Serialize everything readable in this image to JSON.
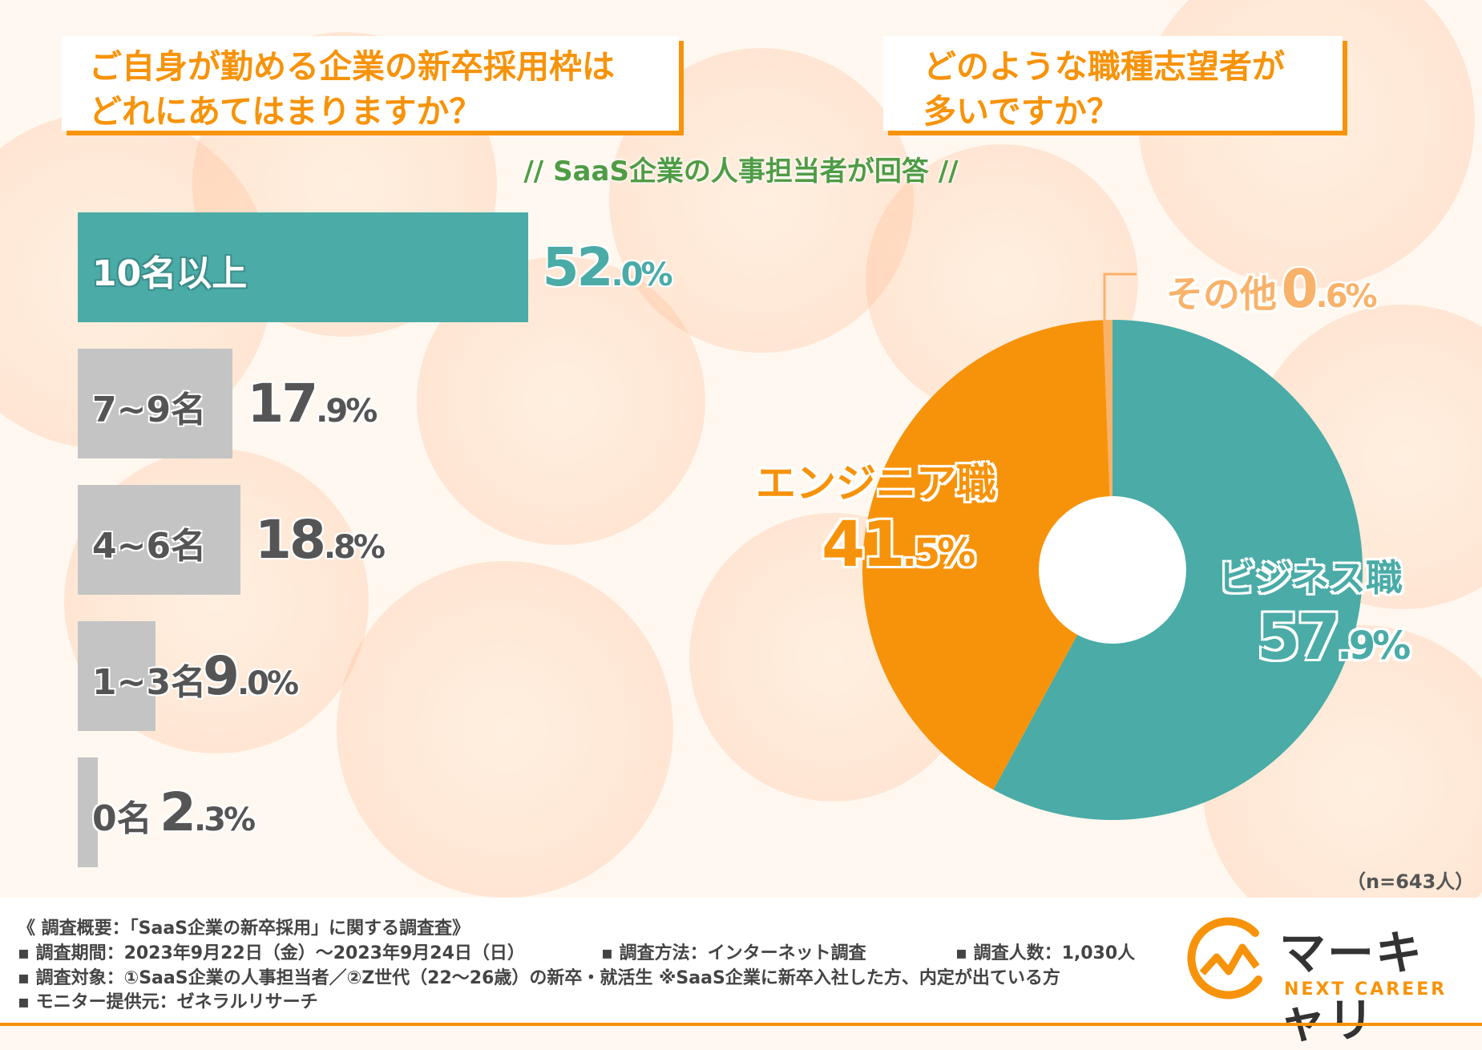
{
  "questions": {
    "left": [
      "ご自身が勤める企業の新卒採用枠は",
      "どれにあてはまりますか？"
    ],
    "right": [
      "どのような職種志望者が",
      "多いですか？"
    ]
  },
  "subtitle": "// SaaS企業の人事担当者が回答 //",
  "colors": {
    "teal": "#4aaba7",
    "orange": "#f7930a",
    "light_orange": "#f9b26a",
    "gray": "#c4c4c4",
    "green": "#4f9c45"
  },
  "chart_data": [
    {
      "type": "bar",
      "orientation": "horizontal",
      "categories": [
        "10名以上",
        "7~9名",
        "4~6名",
        "1~3名",
        "0名"
      ],
      "values": [
        52.0,
        17.9,
        18.8,
        9.0,
        2.3
      ],
      "value_labels": [
        [
          "52",
          ".0%"
        ],
        [
          "17",
          ".9%"
        ],
        [
          "18",
          ".8%"
        ],
        [
          "9",
          ".0%"
        ],
        [
          "2",
          ".3%"
        ]
      ],
      "unit": "%"
    },
    {
      "type": "pie",
      "donut": true,
      "categories": [
        "ビジネス職",
        "エンジニア職",
        "その他"
      ],
      "values": [
        57.9,
        41.5,
        0.6
      ],
      "value_labels": [
        [
          "57",
          ".9%"
        ],
        [
          "41",
          ".5%"
        ],
        [
          "0",
          ".6%"
        ]
      ],
      "colors": [
        "#4aaba7",
        "#f7930a",
        "#f9b26a"
      ]
    }
  ],
  "sample": "（n=643人）",
  "footer": {
    "title": "《 調査概要：「SaaS企業の新卒採用」に関する調査査》",
    "period": "▪ 調査期間：2023年9月22日（金）～2023年9月24日（日）",
    "method": "▪ 調査方法：インターネット調査",
    "count": "▪ 調査人数：1,030人",
    "target": "▪ 調査対象：①SaaS企業の人事担当者／②Z世代（22～26歳）の新卒・就活生 ※SaaS企業に新卒入社した方、内定が出ている方",
    "monitor": "▪ モニター提供元：ゼネラルリサーチ"
  },
  "logo": {
    "name": "マーキャリ",
    "tagline": "NEXT CAREER"
  }
}
